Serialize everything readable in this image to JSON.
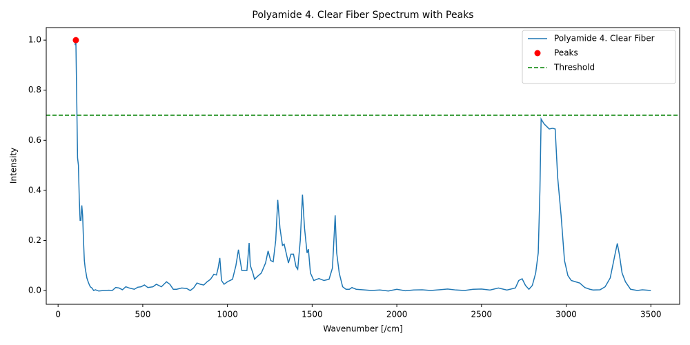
{
  "chart_data": {
    "type": "line",
    "title": "Polyamide 4. Clear Fiber Spectrum with Peaks",
    "x_label": "Wavenumber [/cm]",
    "y_label": "Intensity",
    "xlim": [
      -70,
      3670
    ],
    "ylim": [
      -0.055,
      1.05
    ],
    "xticks": [
      0,
      500,
      1000,
      1500,
      2000,
      2500,
      3000,
      3500
    ],
    "yticks": [
      {
        "value": 0,
        "label": "0.0"
      },
      0.2,
      0.4,
      0.6,
      0.8,
      {
        "value": 1,
        "label": "1.0"
      }
    ],
    "legend": "upper right",
    "series": [
      {
        "name": "Polyamide 4. Clear Fiber",
        "color": "#1f77b4",
        "style": "line",
        "x": [
          100,
          105,
          110,
          115,
          120,
          125,
          130,
          135,
          140,
          145,
          150,
          155,
          160,
          170,
          180,
          190,
          200,
          210,
          220,
          240,
          270,
          300,
          320,
          340,
          360,
          380,
          400,
          420,
          450,
          470,
          490,
          510,
          530,
          560,
          580,
          610,
          640,
          660,
          680,
          700,
          730,
          760,
          780,
          800,
          820,
          840,
          860,
          880,
          900,
          920,
          935,
          945,
          955,
          965,
          980,
          1000,
          1030,
          1050,
          1065,
          1075,
          1085,
          1105,
          1115,
          1128,
          1135,
          1150,
          1160,
          1175,
          1200,
          1225,
          1240,
          1255,
          1270,
          1285,
          1297,
          1310,
          1325,
          1335,
          1350,
          1360,
          1375,
          1390,
          1405,
          1415,
          1430,
          1443,
          1455,
          1470,
          1478,
          1490,
          1510,
          1540,
          1570,
          1600,
          1620,
          1636,
          1645,
          1660,
          1680,
          1700,
          1720,
          1735,
          1760,
          1800,
          1850,
          1900,
          1950,
          2000,
          2050,
          2100,
          2150,
          2200,
          2250,
          2300,
          2350,
          2400,
          2450,
          2500,
          2550,
          2600,
          2650,
          2700,
          2720,
          2740,
          2760,
          2780,
          2800,
          2820,
          2835,
          2845,
          2852,
          2870,
          2900,
          2920,
          2935,
          2950,
          2970,
          2990,
          3010,
          3030,
          3050,
          3080,
          3110,
          3140,
          3160,
          3200,
          3230,
          3260,
          3290,
          3302,
          3315,
          3330,
          3350,
          3380,
          3420,
          3450,
          3500
        ],
        "values": [
          0.98,
          1.0,
          0.77,
          0.53,
          0.5,
          0.37,
          0.28,
          0.28,
          0.34,
          0.3,
          0.2,
          0.12,
          0.09,
          0.05,
          0.03,
          0.015,
          0.01,
          0.0,
          0.003,
          -0.002,
          0.0,
          0.001,
          0.0,
          0.012,
          0.01,
          0.003,
          0.015,
          0.01,
          0.005,
          0.013,
          0.015,
          0.022,
          0.012,
          0.015,
          0.025,
          0.015,
          0.035,
          0.025,
          0.005,
          0.005,
          0.01,
          0.008,
          0.0,
          0.01,
          0.03,
          0.025,
          0.022,
          0.035,
          0.045,
          0.065,
          0.062,
          0.09,
          0.13,
          0.04,
          0.025,
          0.035,
          0.045,
          0.1,
          0.163,
          0.12,
          0.08,
          0.08,
          0.08,
          0.19,
          0.1,
          0.07,
          0.045,
          0.055,
          0.07,
          0.11,
          0.158,
          0.12,
          0.115,
          0.2,
          0.362,
          0.25,
          0.18,
          0.185,
          0.14,
          0.11,
          0.145,
          0.145,
          0.095,
          0.085,
          0.2,
          0.383,
          0.25,
          0.15,
          0.165,
          0.07,
          0.04,
          0.048,
          0.04,
          0.045,
          0.09,
          0.3,
          0.15,
          0.07,
          0.015,
          0.005,
          0.005,
          0.012,
          0.005,
          0.003,
          0.0,
          0.002,
          -0.002,
          0.005,
          -0.001,
          0.002,
          0.003,
          0.0,
          0.003,
          0.006,
          0.002,
          0.0,
          0.005,
          0.006,
          0.002,
          0.01,
          0.002,
          0.01,
          0.04,
          0.047,
          0.02,
          0.005,
          0.02,
          0.07,
          0.15,
          0.4,
          0.685,
          0.665,
          0.645,
          0.648,
          0.645,
          0.45,
          0.3,
          0.12,
          0.06,
          0.04,
          0.036,
          0.03,
          0.012,
          0.005,
          0.002,
          0.003,
          0.015,
          0.05,
          0.15,
          0.188,
          0.14,
          0.07,
          0.035,
          0.005,
          0.0,
          0.003,
          0.0
        ]
      },
      {
        "name": "Peaks",
        "color": "#ff0000",
        "style": "marker",
        "x": [
          105
        ],
        "values": [
          1.0
        ]
      },
      {
        "name": "Threshold",
        "color": "#008000",
        "style": "hline",
        "values": [
          0.7
        ]
      }
    ]
  }
}
